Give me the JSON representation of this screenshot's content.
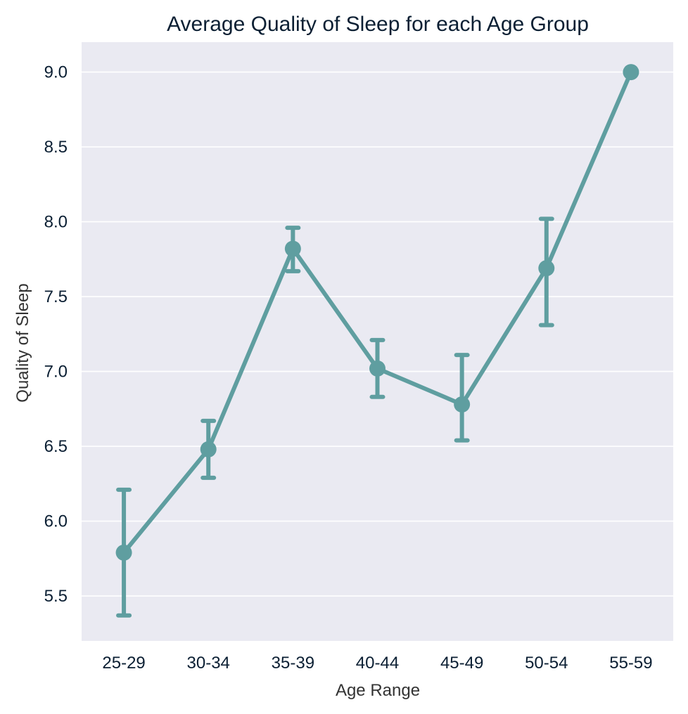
{
  "chart_data": {
    "type": "line",
    "title": "Average Quality of Sleep for each Age Group",
    "xlabel": "Age Range",
    "ylabel": "Quality of Sleep",
    "categories": [
      "25-29",
      "30-34",
      "35-39",
      "40-44",
      "45-49",
      "50-54",
      "55-59"
    ],
    "series": [
      {
        "values": [
          5.79,
          6.48,
          7.82,
          7.02,
          6.78,
          7.69,
          9.0
        ],
        "error_lower": [
          5.37,
          6.29,
          7.67,
          6.83,
          6.54,
          7.31,
          9.0
        ],
        "error_upper": [
          6.21,
          6.67,
          7.96,
          7.21,
          7.11,
          8.02,
          9.0
        ]
      }
    ],
    "yticks": [
      "5.5",
      "6.0",
      "6.5",
      "7.0",
      "7.5",
      "8.0",
      "8.5",
      "9.0"
    ],
    "ylim": [
      5.2,
      9.2
    ],
    "grid": true,
    "colors": {
      "series": "#5f9ea0",
      "plot_background": "#eaeaf2",
      "grid": "#ffffff"
    }
  }
}
